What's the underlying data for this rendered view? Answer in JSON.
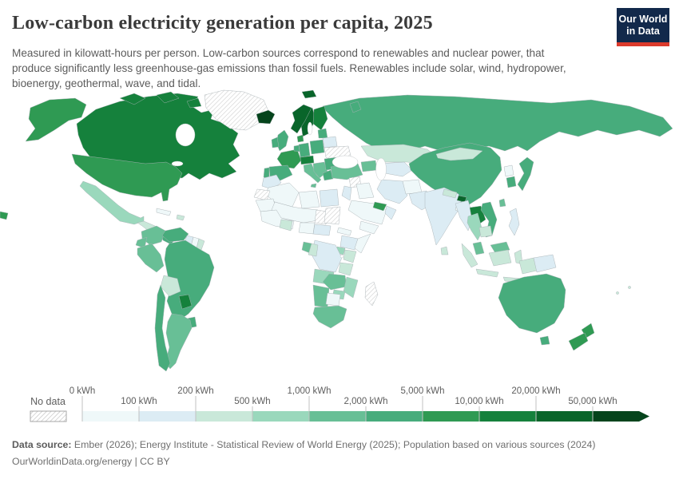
{
  "header": {
    "title": "Low-carbon electricity generation per capita, 2025",
    "subtitle": "Measured in kilowatt-hours per person. Low-carbon sources correspond to renewables and nuclear power, that produce significantly less greenhouse-gas emissions than fossil fuels. Renewables include solar, wind, hydropower, bioenergy, geothermal, wave, and tidal."
  },
  "logo": {
    "line1": "Our World",
    "line2": "in Data",
    "bg_color": "#12294b",
    "accent_color": "#dc3a2c"
  },
  "footer": {
    "sources_label": "Data source:",
    "sources_text": "Ember (2026); Energy Institute - Statistical Review of World Energy (2025); Population based on various sources (2024)",
    "link_text": "OurWorldinData.org/energy",
    "license_text": "| CC BY"
  },
  "chart_data": {
    "type": "choropleth",
    "title": "Low-carbon electricity generation per capita, 2025",
    "unit": "kWh per person",
    "projection": "world",
    "legend": {
      "no_data_label": "No data",
      "tick_labels_top": [
        "0 kWh",
        "200 kWh",
        "1,000 kWh",
        "5,000 kWh",
        "20,000 kWh"
      ],
      "tick_labels_bottom": [
        "100 kWh",
        "500 kWh",
        "2,000 kWh",
        "10,000 kWh",
        "50,000 kWh"
      ],
      "bin_ranges": [
        "0-100",
        "100-200",
        "200-500",
        "500-1,000",
        "1,000-2,000",
        "2,000-5,000",
        "5,000-10,000",
        "10,000-20,000",
        "20,000-50,000",
        "50,000+"
      ],
      "bin_colors": [
        "#eff8f9",
        "#dcecf4",
        "#c9e8d9",
        "#9ad8bc",
        "#68bf96",
        "#47ac7c",
        "#2f9a53",
        "#15813c",
        "#09652a",
        "#05441c"
      ],
      "no_data_pattern": "diagonal-hatch"
    },
    "regions": {
      "greenland": "no-data",
      "canada": 8,
      "alaska": 7,
      "usa": 7,
      "hawaii": 7,
      "mexico": 4,
      "central-america-north": 3,
      "costa-rica-panama": 6,
      "cuba": 1,
      "hispaniola": 3,
      "colombia": 5,
      "venezuela": 6,
      "guyana": 2,
      "suriname": 1,
      "french-guiana": 3,
      "ecuador": 5,
      "peru": 5,
      "brazil": 6,
      "bolivia": 3,
      "paraguay": 8,
      "uruguay": 6,
      "argentina": 5,
      "chile": 6,
      "iceland": 10,
      "svalbard": 9,
      "norway": 9,
      "sweden": 9,
      "finland": 8,
      "denmark": 7,
      "uk": 6,
      "ireland": 6,
      "france": 7,
      "spain": 6,
      "portugal": 6,
      "benelux": 6,
      "germany": 6,
      "alps": 8,
      "italy": 5,
      "sicily": 5,
      "poland-czech": 6,
      "baltics": 6,
      "belarus": 2,
      "ukraine": "no-data",
      "balkans": 5,
      "romania-bulgaria": 6,
      "greece": 6,
      "russia": 6,
      "novaya-zemlya": 6,
      "kazakhstan": 3,
      "turkmen-uzbek": 2,
      "caucasus": 5,
      "turkey": 5,
      "syria": "no-data",
      "israel-jordan": 2,
      "iraq": 1,
      "iran": 2,
      "saudi-arabia": 1,
      "uae": 7,
      "oman": 2,
      "yemen": 1,
      "afghanistan": 1,
      "pakistan": 2,
      "india": 2,
      "nepal": 3,
      "bhutan": 9,
      "bangladesh": 1,
      "sri-lanka": 3,
      "china": 6,
      "mongolia": 3,
      "north-korea": 1,
      "south-korea": 6,
      "japan": 6,
      "taiwan": 5,
      "myanmar": 2,
      "thailand": 4,
      "laos": 8,
      "vietnam": 6,
      "cambodia": 3,
      "malaysia-peninsula": 5,
      "malaysia-borneo": 5,
      "sumatra": 3,
      "java": 3,
      "borneo-indonesia": 3,
      "sulawesi": 3,
      "lesser-sunda": 3,
      "philippines": 2,
      "indo-papua": 3,
      "papua-new-guinea": 2,
      "morocco": 2,
      "western-sahara": "no-data",
      "algeria": 1,
      "libya": 1,
      "egypt": 2,
      "mauritania": 1,
      "sahel": 1,
      "chad": "no-data",
      "sudan": "no-data",
      "west-africa": 1,
      "ghana": 3,
      "nigeria": 1,
      "cameroon-car": 2,
      "eritrea": 1,
      "ethiopia": 2,
      "somalia": 1,
      "kenya": 3,
      "uganda": 4,
      "drc": 2,
      "gabon": 5,
      "congo": 3,
      "tanzania": 3,
      "angola": 4,
      "zambia": 5,
      "malawi-mozambique": 4,
      "zimbabwe": 4,
      "namibia": 5,
      "botswana": 1,
      "south-africa": 5,
      "madagascar": "no-data",
      "australia": 6,
      "tasmania": 6,
      "new-zealand-north": 7,
      "new-zealand-south": 7,
      "fiji": 3,
      "new-caledonia": 3
    }
  }
}
